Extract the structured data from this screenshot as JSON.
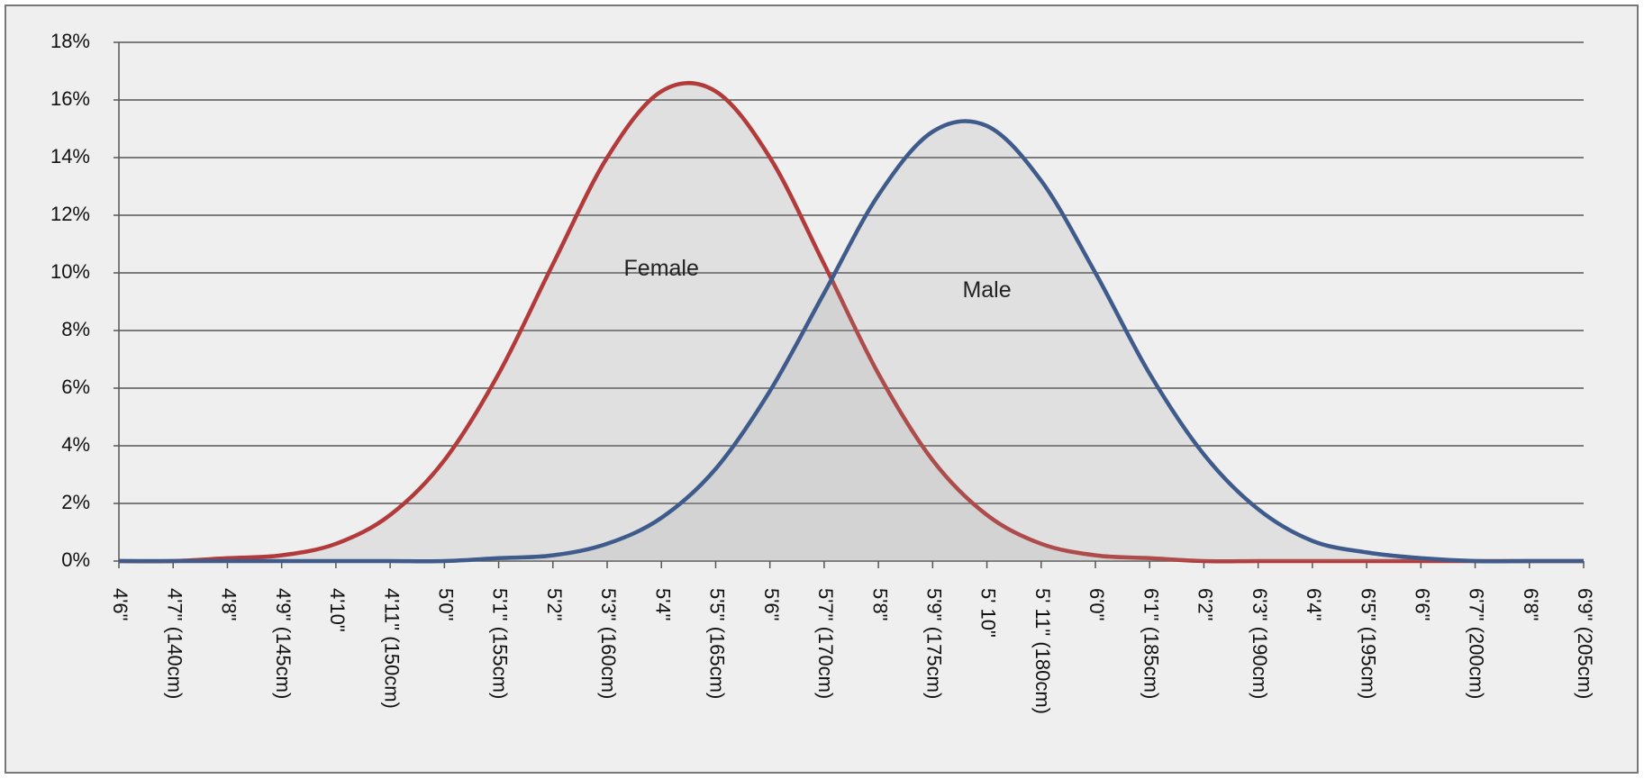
{
  "chart_data": {
    "type": "line",
    "categories": [
      "4'6\"",
      "4'7\" (140cm)",
      "4'8\"",
      "4'9\" (145cm)",
      "4'10\"",
      "4'11\" (150cm)",
      "5'0\"",
      "5'1\" (155cm)",
      "5'2\"",
      "5'3\" (160cm)",
      "5'4\"",
      "5'5\" (165cm)",
      "5'6\"",
      "5'7\" (170cm)",
      "5'8\"",
      "5'9\" (175cm)",
      "5' 10\"",
      "5' 11\" (180cm)",
      "6'0\"",
      "6'1\" (185cm)",
      "6'2\"",
      "6'3\" (190cm)",
      "6'4\"",
      "6'5\" (195cm)",
      "6'6\"",
      "6'7\" (200cm)",
      "6'8\"",
      "6'9\" (205cm)"
    ],
    "series": [
      {
        "name": "Female",
        "color": "#b23a3a",
        "values": [
          0,
          0,
          0.1,
          0.2,
          0.6,
          1.6,
          3.5,
          6.5,
          10.3,
          14.0,
          16.3,
          16.3,
          14.0,
          10.3,
          6.5,
          3.5,
          1.6,
          0.6,
          0.2,
          0.1,
          0,
          0,
          0,
          0,
          0,
          0,
          0,
          0
        ]
      },
      {
        "name": "Male",
        "color": "#3e5b8c",
        "values": [
          0,
          0,
          0,
          0,
          0,
          0,
          0,
          0.1,
          0.2,
          0.6,
          1.5,
          3.2,
          5.9,
          9.3,
          12.7,
          14.9,
          15.1,
          13.2,
          10.0,
          6.5,
          3.7,
          1.8,
          0.7,
          0.3,
          0.1,
          0,
          0,
          0
        ]
      }
    ],
    "ylim": [
      0,
      18
    ],
    "yticks": [
      {
        "value": 0,
        "label": "0%"
      },
      {
        "value": 2,
        "label": "2%"
      },
      {
        "value": 4,
        "label": "4%"
      },
      {
        "value": 6,
        "label": "6%"
      },
      {
        "value": 8,
        "label": "8%"
      },
      {
        "value": 10,
        "label": "10%"
      },
      {
        "value": 12,
        "label": "12%"
      },
      {
        "value": 14,
        "label": "14%"
      },
      {
        "value": 16,
        "label": "16%"
      },
      {
        "value": 18,
        "label": "18%"
      }
    ],
    "grid": true
  }
}
